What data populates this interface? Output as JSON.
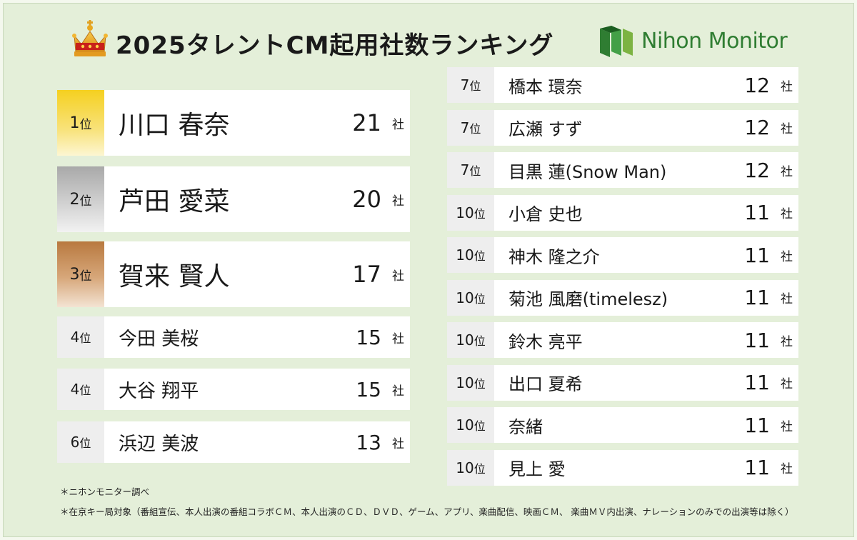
{
  "title": "2025タレントCM起用社数ランキング",
  "brand": {
    "name": "Nihon Monitor",
    "color": "#2f7d32"
  },
  "icons": {
    "crown": "crown-icon",
    "logo": "nihon-monitor-logo-icon"
  },
  "colors": {
    "gold": "#f5d020",
    "silver": "#c9c9c9",
    "bronze": "#b8793f",
    "rank_bg": "#eeeeee",
    "background": "#e4efd9"
  },
  "ranking_left": [
    {
      "rank": "1",
      "rank_suffix": "位",
      "name": "川口 春奈",
      "count": "21",
      "unit": "社",
      "medal": "gold"
    },
    {
      "rank": "2",
      "rank_suffix": "位",
      "name": "芦田 愛菜",
      "count": "20",
      "unit": "社",
      "medal": "silver"
    },
    {
      "rank": "3",
      "rank_suffix": "位",
      "name": "賀来 賢人",
      "count": "17",
      "unit": "社",
      "medal": "bronze"
    },
    {
      "rank": "4",
      "rank_suffix": "位",
      "name": "今田 美桜",
      "count": "15",
      "unit": "社",
      "medal": ""
    },
    {
      "rank": "4",
      "rank_suffix": "位",
      "name": "大谷 翔平",
      "count": "15",
      "unit": "社",
      "medal": ""
    },
    {
      "rank": "6",
      "rank_suffix": "位",
      "name": "浜辺 美波",
      "count": "13",
      "unit": "社",
      "medal": ""
    }
  ],
  "ranking_right": [
    {
      "rank": "7",
      "rank_suffix": "位",
      "name": "橋本 環奈",
      "count": "12",
      "unit": "社"
    },
    {
      "rank": "7",
      "rank_suffix": "位",
      "name": "広瀬 すず",
      "count": "12",
      "unit": "社"
    },
    {
      "rank": "7",
      "rank_suffix": "位",
      "name": "目黒 蓮(Snow Man)",
      "count": "12",
      "unit": "社"
    },
    {
      "rank": "10",
      "rank_suffix": "位",
      "name": "小倉 史也",
      "count": "11",
      "unit": "社"
    },
    {
      "rank": "10",
      "rank_suffix": "位",
      "name": "神木 隆之介",
      "count": "11",
      "unit": "社"
    },
    {
      "rank": "10",
      "rank_suffix": "位",
      "name": "菊池 風磨(timelesz)",
      "count": "11",
      "unit": "社"
    },
    {
      "rank": "10",
      "rank_suffix": "位",
      "name": "鈴木 亮平",
      "count": "11",
      "unit": "社"
    },
    {
      "rank": "10",
      "rank_suffix": "位",
      "name": "出口 夏希",
      "count": "11",
      "unit": "社"
    },
    {
      "rank": "10",
      "rank_suffix": "位",
      "name": "奈緒",
      "count": "11",
      "unit": "社"
    },
    {
      "rank": "10",
      "rank_suffix": "位",
      "name": "見上 愛",
      "count": "11",
      "unit": "社"
    }
  ],
  "footnotes": [
    "＊ニホンモニター調べ",
    "＊在京キー局対象（番組宣伝、本人出演の番組コラボＣＭ、本人出演のＣＤ、ＤＶＤ、ゲーム、アプリ、楽曲配信、映画ＣＭ、 楽曲ＭＶ内出演、ナレーションのみでの出演等は除く）"
  ]
}
